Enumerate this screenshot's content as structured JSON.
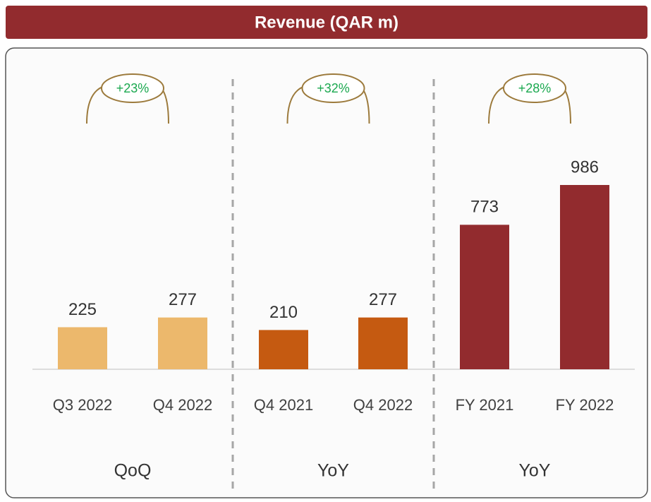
{
  "chart_data": {
    "type": "bar",
    "title": "Revenue (QAR m)",
    "categories": [
      "Q3 2022",
      "Q4 2022",
      "Q4 2021",
      "Q4 2022",
      "FY 2021",
      "FY 2022"
    ],
    "values": [
      225,
      277,
      210,
      277,
      773,
      986
    ],
    "colors": [
      "#ecb86c",
      "#ecb86c",
      "#c55a11",
      "#c55a11",
      "#922b2e",
      "#922b2e"
    ],
    "groups": [
      {
        "name": "QoQ",
        "change": "+23%"
      },
      {
        "name": "YoY",
        "change": "+32%"
      },
      {
        "name": "YoY",
        "change": "+28%"
      }
    ]
  }
}
